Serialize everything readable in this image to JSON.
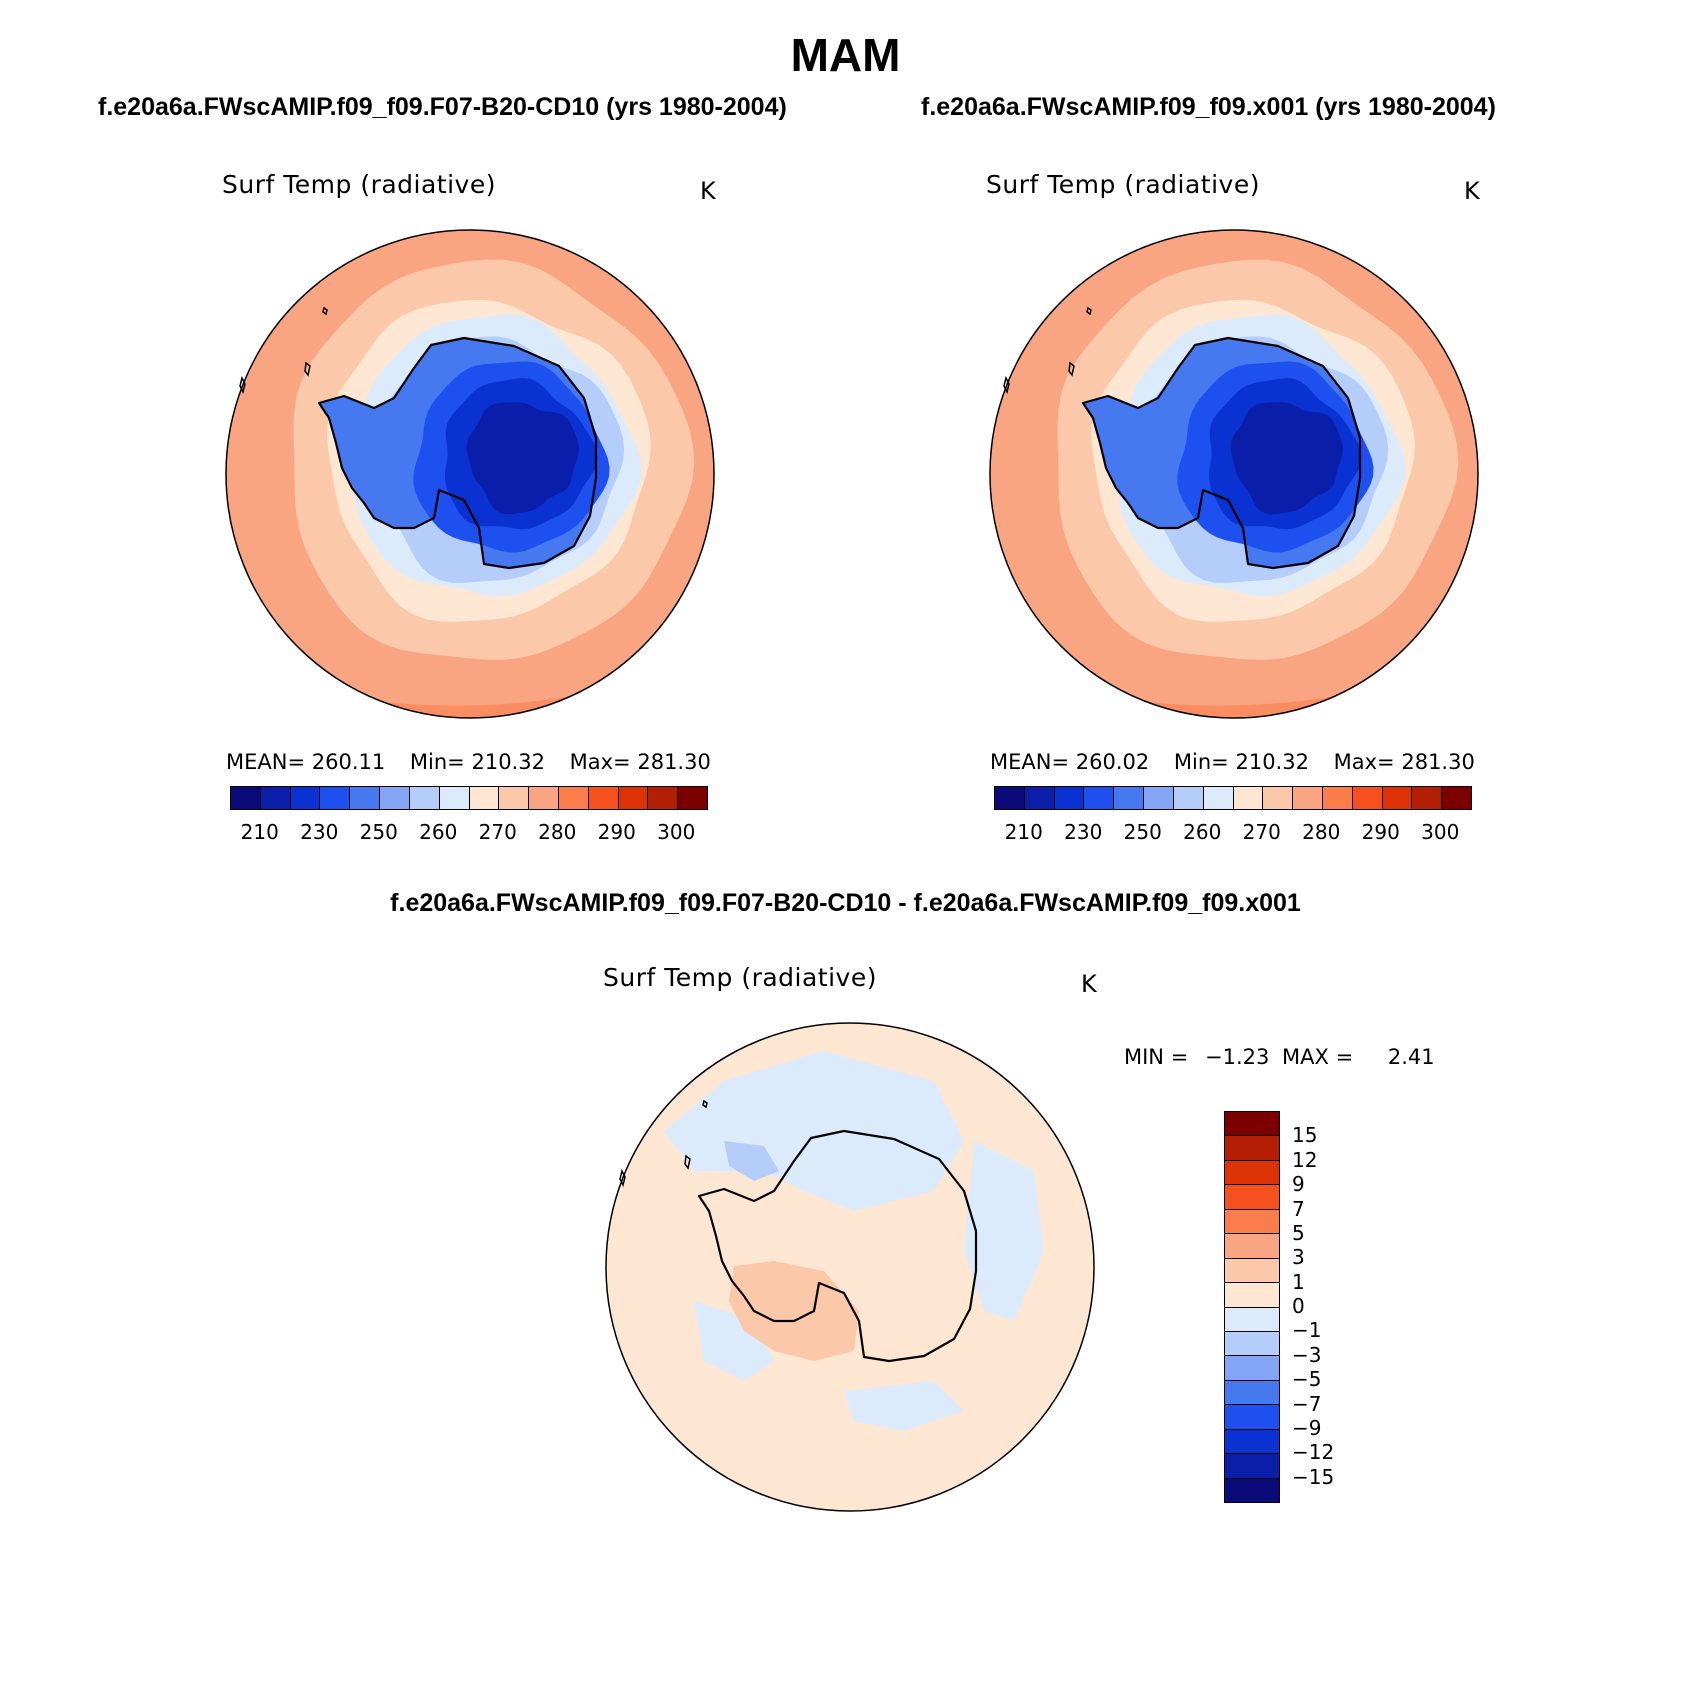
{
  "title": "MAM",
  "panels": {
    "left": {
      "case": "f.e20a6a.FWscAMIP.f09_f09.F07-B20-CD10 (yrs 1980-2004)",
      "variable": "Surf Temp (radiative)",
      "unit": "K",
      "stats": {
        "mean_label": "MEAN=",
        "mean": "260.11",
        "min_label": "Min=",
        "min": "210.32",
        "max_label": "Max=",
        "max": "281.30"
      }
    },
    "right": {
      "case": "f.e20a6a.FWscAMIP.f09_f09.x001 (yrs 1980-2004)",
      "variable": "Surf Temp (radiative)",
      "unit": "K",
      "stats": {
        "mean_label": "MEAN=",
        "mean": "260.02",
        "min_label": "Min=",
        "min": "210.32",
        "max_label": "Max=",
        "max": "281.30"
      }
    },
    "diff": {
      "case": "f.e20a6a.FWscAMIP.f09_f09.F07-B20-CD10 - f.e20a6a.FWscAMIP.f09_f09.x001",
      "variable": "Surf Temp (radiative)",
      "unit": "K",
      "stats": {
        "min_label": "MIN =",
        "min": "−1.23",
        "max_label": "MAX =",
        "max": "2.41"
      }
    }
  },
  "colorbar_abs": {
    "colors": [
      "#0a0a78",
      "#0a1eaa",
      "#0a32d2",
      "#1e50f0",
      "#4678f0",
      "#82a5f5",
      "#b4cdfa",
      "#dcebfc",
      "#fde6d2",
      "#fbc8aa",
      "#f9a582",
      "#fa7d4b",
      "#f5501e",
      "#dc3205",
      "#b41e05",
      "#7d0000"
    ],
    "labels": [
      "210",
      "230",
      "250",
      "260",
      "270",
      "280",
      "290",
      "300"
    ]
  },
  "colorbar_diff": {
    "colors": [
      "#7d0000",
      "#b41e05",
      "#dc3205",
      "#f5501e",
      "#fa7d4b",
      "#f9a582",
      "#fbc8aa",
      "#fde6d2",
      "#dcebfc",
      "#b4cdfa",
      "#82a5f5",
      "#4678f0",
      "#1e50f0",
      "#0a32d2",
      "#0a1eaa",
      "#0a0a78"
    ],
    "labels": [
      "15",
      "12",
      "9",
      "7",
      "5",
      "3",
      "1",
      "0",
      "−1",
      "−3",
      "−5",
      "−7",
      "−9",
      "−12",
      "−15"
    ]
  },
  "map_colors": {
    "outer_ring": "#f9a582",
    "mid_ring": "#fbc8aa",
    "peach": "#fde6d2",
    "pale_blue": "#dcebfc",
    "light_blue": "#b4cdfa",
    "blue1": "#82a5f5",
    "blue2": "#4678f0",
    "blue3": "#1e50f0",
    "blue4": "#0a32d2",
    "core": "#0a1eaa",
    "warm_edge": "#fa7d4b"
  }
}
